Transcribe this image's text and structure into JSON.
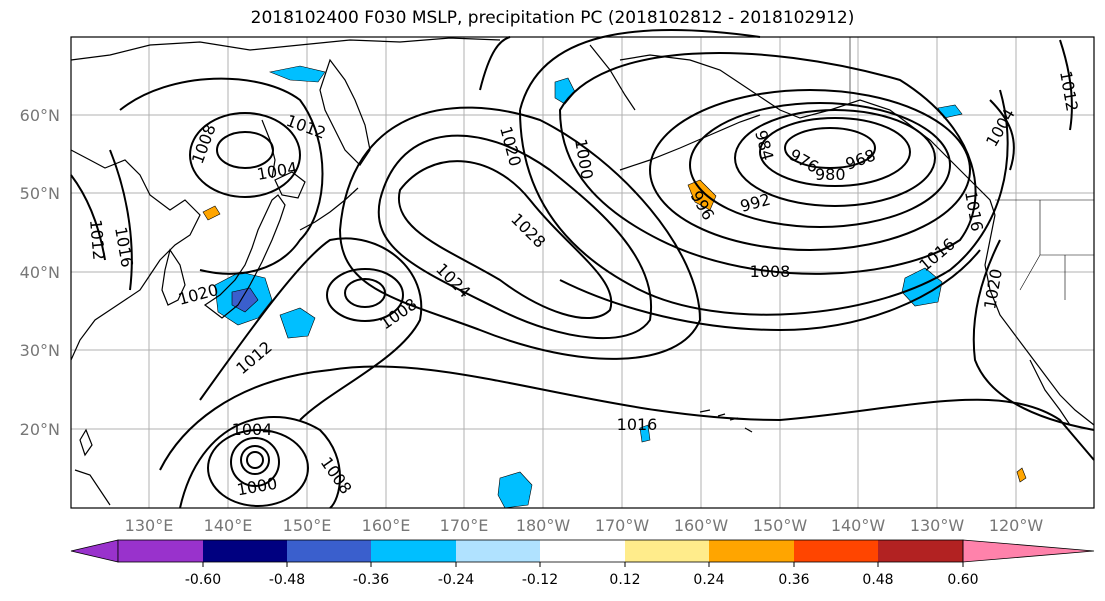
{
  "title": "2018102400 F030 MSLP, precipitation PC (2018102812 - 2018102912)",
  "map": {
    "lat_labels": [
      "60°N",
      "50°N",
      "40°N",
      "30°N",
      "20°N"
    ],
    "lon_labels": [
      "130°E",
      "140°E",
      "150°E",
      "160°E",
      "170°E",
      "180°W",
      "170°W",
      "160°W",
      "150°W",
      "140°W",
      "130°W",
      "120°W"
    ],
    "grid": true,
    "coastline_color": "#000000",
    "isobar_color": "#000000",
    "isobar_labels": [
      {
        "text": "1012",
        "rot": 20
      },
      {
        "text": "1008",
        "rot": -70
      },
      {
        "text": "1004",
        "rot": -10
      },
      {
        "text": "1012",
        "rot": 85
      },
      {
        "text": "1016",
        "rot": 80
      },
      {
        "text": "1020",
        "rot": -15
      },
      {
        "text": "1008",
        "rot": -35
      },
      {
        "text": "1012",
        "rot": -40
      },
      {
        "text": "1004",
        "rot": 0
      },
      {
        "text": "1000",
        "rot": -10
      },
      {
        "text": "1008",
        "rot": 55
      },
      {
        "text": "1024",
        "rot": 45
      },
      {
        "text": "1028",
        "rot": 45
      },
      {
        "text": "1020",
        "rot": 75
      },
      {
        "text": "1000",
        "rot": 80
      },
      {
        "text": "984",
        "rot": 75
      },
      {
        "text": "976",
        "rot": 30
      },
      {
        "text": "980",
        "rot": 0
      },
      {
        "text": "968",
        "rot": -20
      },
      {
        "text": "996",
        "rot": 60
      },
      {
        "text": "992",
        "rot": -15
      },
      {
        "text": "1008",
        "rot": 0
      },
      {
        "text": "1016",
        "rot": -40
      },
      {
        "text": "1020",
        "rot": -80
      },
      {
        "text": "1016",
        "rot": 0
      },
      {
        "text": "1004",
        "rot": -60
      },
      {
        "text": "1012",
        "rot": 80
      },
      {
        "text": "1016",
        "rot": 80
      }
    ]
  },
  "colorbar": {
    "colors": [
      "#9932cc",
      "#000080",
      "#3a5fcd",
      "#00bfff",
      "#b0e2ff",
      "#ffffff",
      "#ffec8b",
      "#ffa500",
      "#ff4500",
      "#b22222",
      "#ff82ab"
    ],
    "labels": [
      "-0.60",
      "-0.48",
      "-0.36",
      "-0.24",
      "-0.12",
      "0.12",
      "0.24",
      "0.36",
      "0.48",
      "0.60"
    ]
  },
  "precip_colors": {
    "neg1": "#00bfff",
    "neg2": "#3a5fcd",
    "pos1": "#ffa500",
    "pos2": "#ffec8b"
  }
}
